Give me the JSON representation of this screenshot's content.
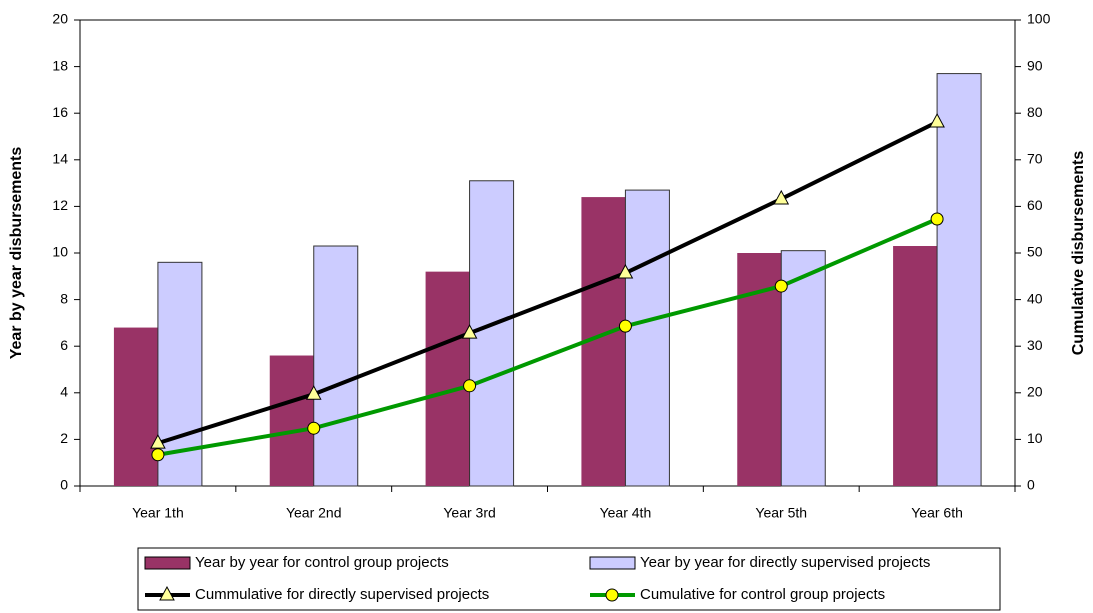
{
  "chart_data": {
    "type": "bar",
    "ylabel": "Year by year disbursements",
    "y2label": "Cumulative disbursements",
    "categories": [
      "Year 1th",
      "Year 2nd",
      "Year 3rd",
      "Year 4th",
      "Year 5th",
      "Year 6th"
    ],
    "ylim": [
      0,
      20
    ],
    "yticks": [
      0,
      2,
      4,
      6,
      8,
      10,
      12,
      14,
      16,
      18,
      20
    ],
    "y2lim": [
      0,
      100
    ],
    "y2ticks": [
      0,
      10,
      20,
      30,
      40,
      50,
      60,
      70,
      80,
      90,
      100
    ],
    "grid": false,
    "legend": "bottom",
    "series": [
      {
        "name": "Year by year for control group projects",
        "type": "bar",
        "color": "#993366",
        "values": [
          6.8,
          5.6,
          9.2,
          12.4,
          10.0,
          10.3
        ]
      },
      {
        "name": "Year by year for directly supervised projects",
        "type": "bar",
        "color": "#ccccff",
        "values": [
          9.6,
          10.3,
          13.1,
          12.7,
          10.1,
          17.7
        ]
      },
      {
        "name": "Cummulative for directly supervised projects",
        "type": "line",
        "axis": "y2",
        "color": "#000000",
        "marker": "triangle",
        "marker_color": "#ffff99",
        "values": [
          9.2,
          19.7,
          32.8,
          45.7,
          61.6,
          78.1
        ]
      },
      {
        "name": "Cumulative for control group projects",
        "type": "line",
        "axis": "y2",
        "color": "#009900",
        "marker": "circle",
        "marker_color": "#ffff00",
        "values": [
          6.7,
          12.4,
          21.5,
          34.3,
          42.9,
          57.3
        ]
      }
    ]
  }
}
